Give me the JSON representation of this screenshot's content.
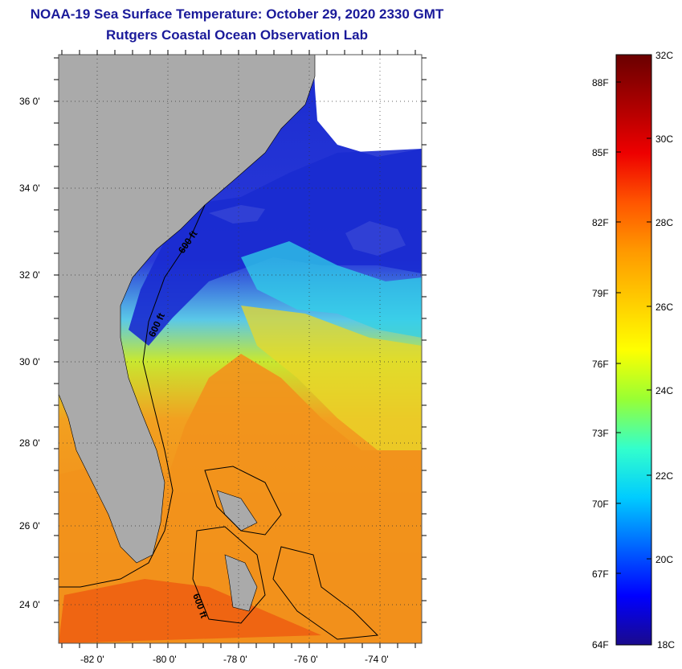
{
  "header": {
    "title": "NOAA-19 Sea Surface Temperature:  October 29, 2020 2330 GMT",
    "subtitle": "Rutgers Coastal Ocean Observation Lab"
  },
  "colors": {
    "title": "#1a1a9a",
    "land": "#aaaaaa",
    "cloud": "#ffffff",
    "warm_water": "#f08a1c",
    "cool_water": "#1a2bd0"
  },
  "map": {
    "lon_range": [
      -83,
      -73
    ],
    "lat_range": [
      23,
      37
    ],
    "lat_labels": [
      "36 0'",
      "34 0'",
      "32 0'",
      "30 0'",
      "28 0'",
      "26 0'",
      "24 0'"
    ],
    "lon_labels": [
      "-82 0'",
      "-80 0'",
      "-78 0'",
      "-76 0'",
      "-74 0'"
    ],
    "contour_labels": [
      "600 ft",
      "600 ft",
      "600 ft"
    ]
  },
  "colorbar": {
    "celsius": [
      "32C",
      "30C",
      "28C",
      "26C",
      "24C",
      "22C",
      "20C",
      "18C"
    ],
    "fahrenheit": [
      "88F",
      "85F",
      "82F",
      "79F",
      "76F",
      "73F",
      "70F",
      "67F",
      "64F"
    ],
    "stops": [
      "#1a0a8c",
      "#0000ff",
      "#0066ff",
      "#00ccff",
      "#33ffcc",
      "#99ff33",
      "#ffff00",
      "#ffcc00",
      "#ff9900",
      "#ff5500",
      "#ee0000",
      "#aa0000",
      "#6a0000"
    ]
  }
}
